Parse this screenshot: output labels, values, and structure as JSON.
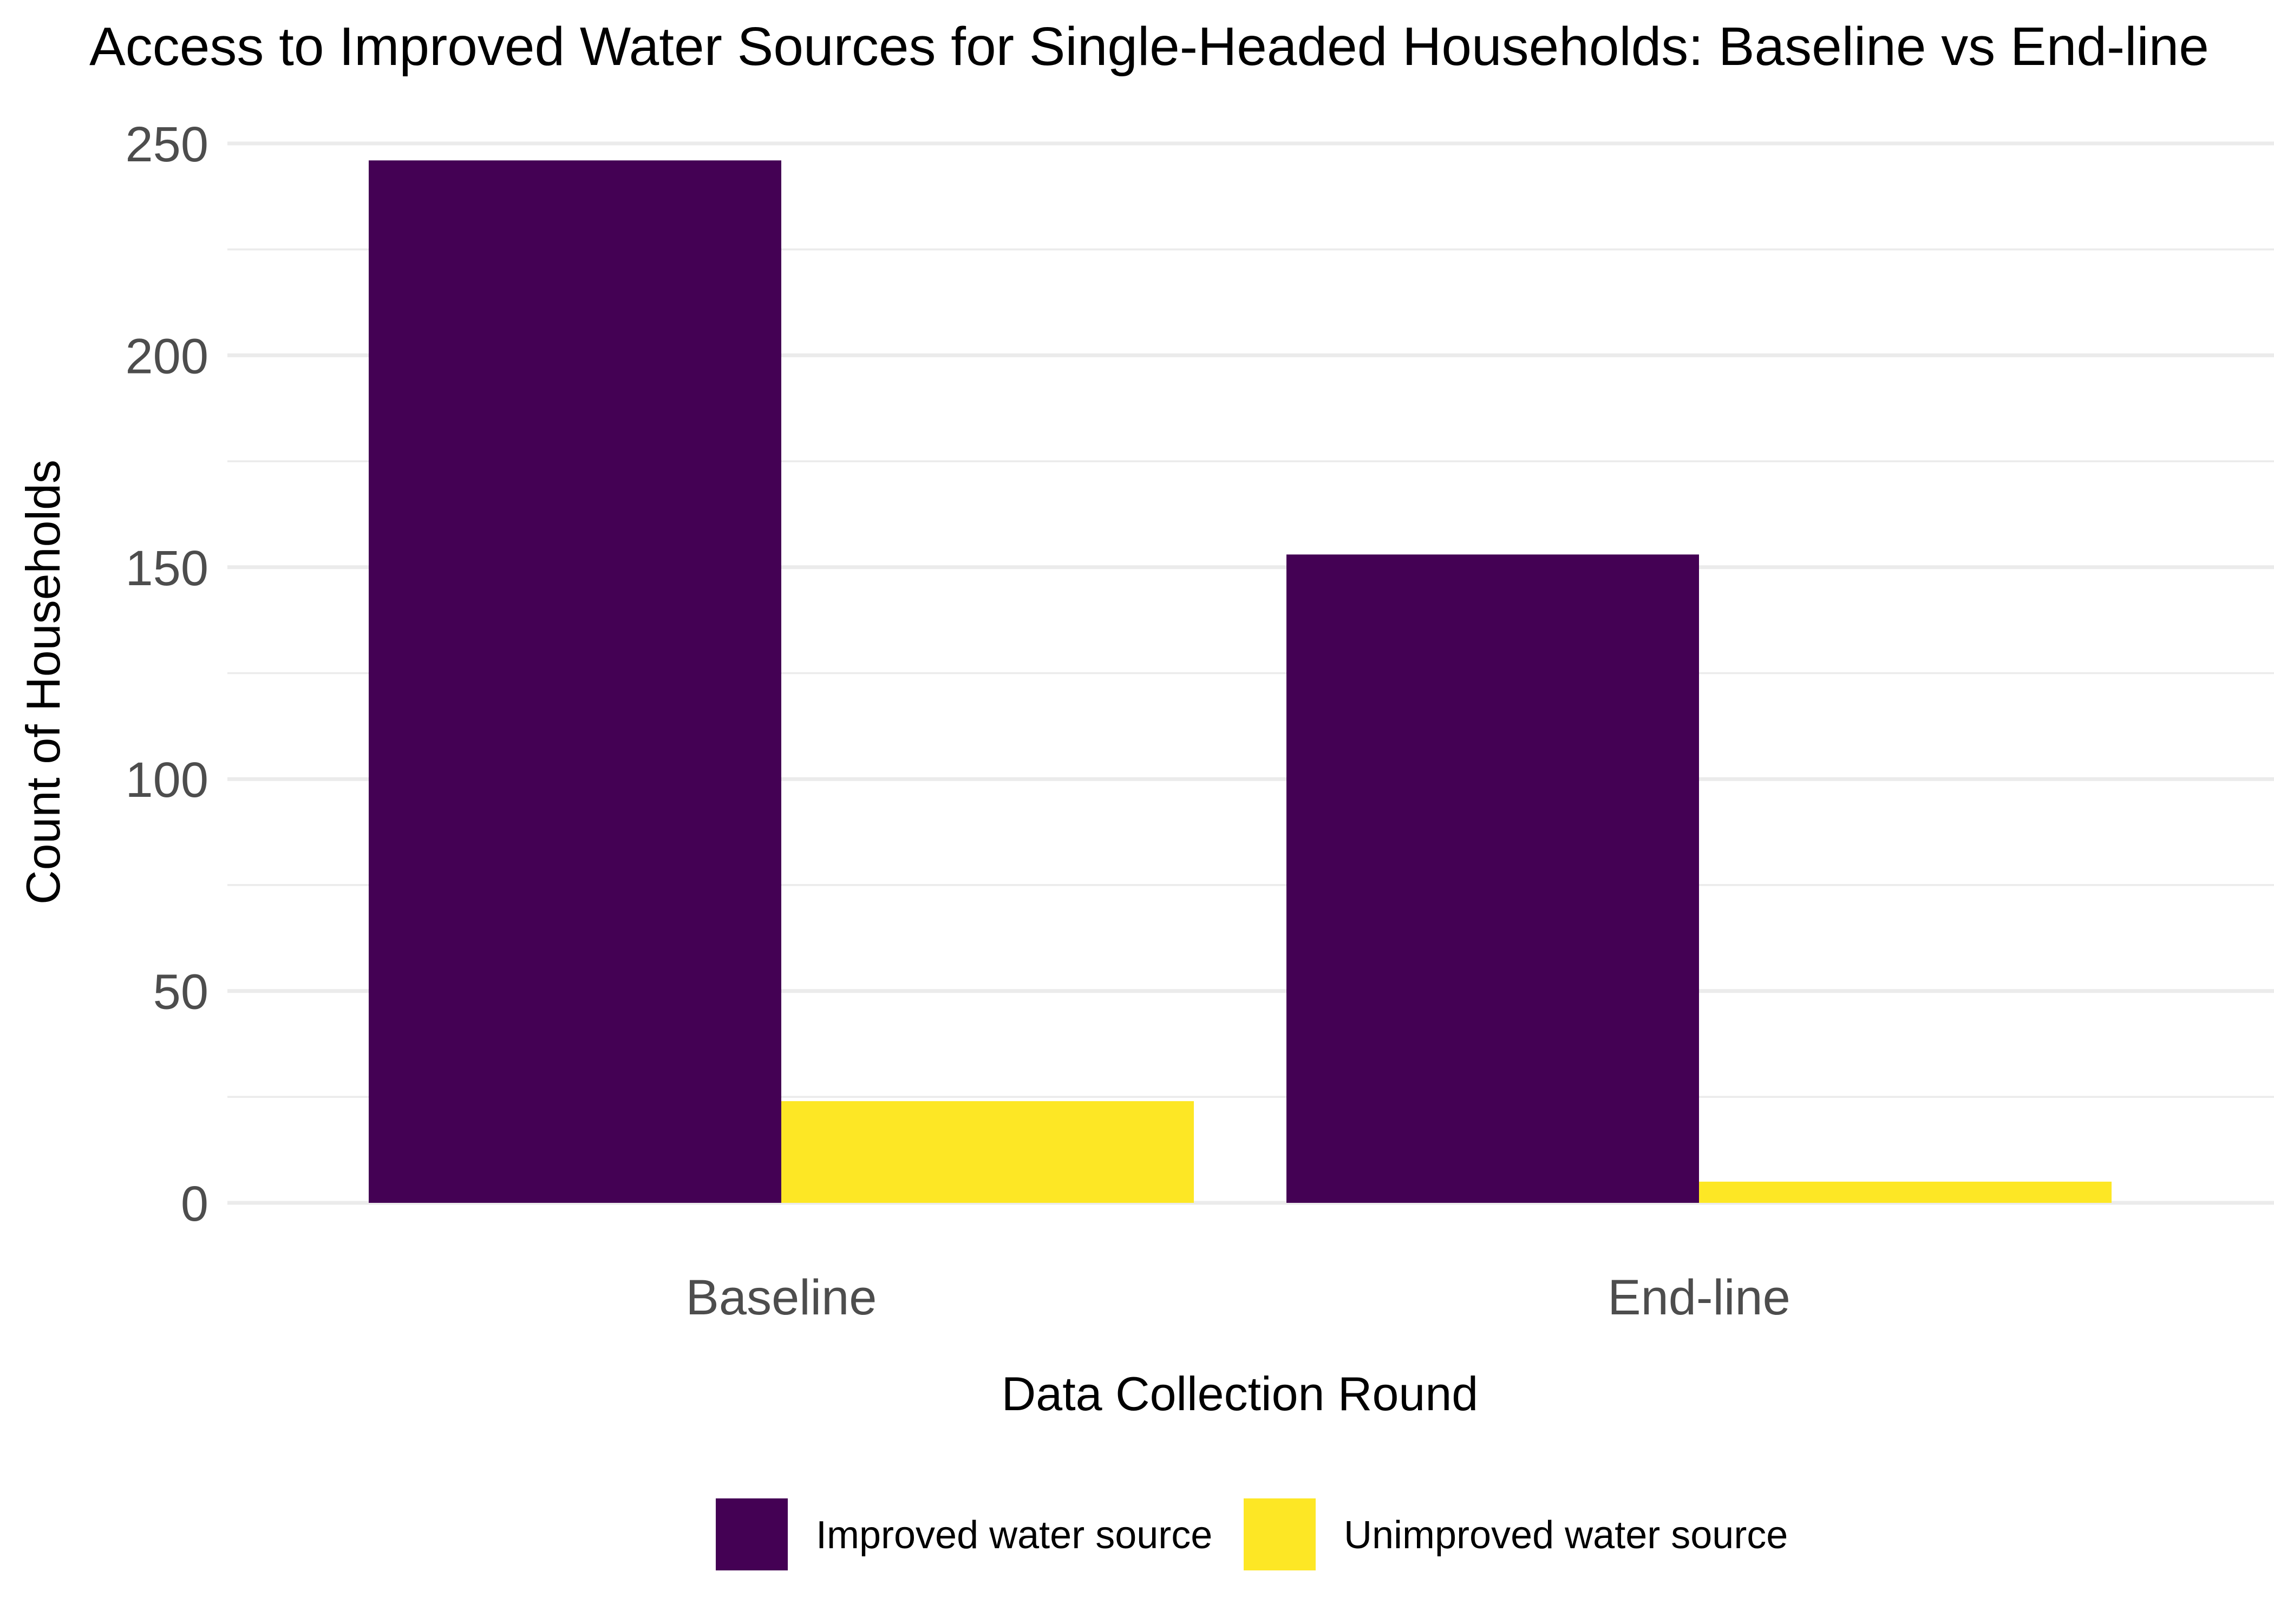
{
  "chart_data": {
    "type": "bar",
    "title": "Access to Improved Water Sources for Single-Headed Households: Baseline vs End-line",
    "xlabel": "Data Collection Round",
    "ylabel": "Count of Households",
    "categories": [
      "Baseline",
      "End-line"
    ],
    "series": [
      {
        "name": "Improved water source",
        "values": [
          246,
          153
        ],
        "color": "#440154"
      },
      {
        "name": "Unimproved water source",
        "values": [
          24,
          5
        ],
        "color": "#FDE725"
      }
    ],
    "ylim": [
      0,
      250
    ],
    "yticks": [
      0,
      50,
      100,
      150,
      200,
      250
    ],
    "grid": true,
    "legend_position": "bottom"
  }
}
